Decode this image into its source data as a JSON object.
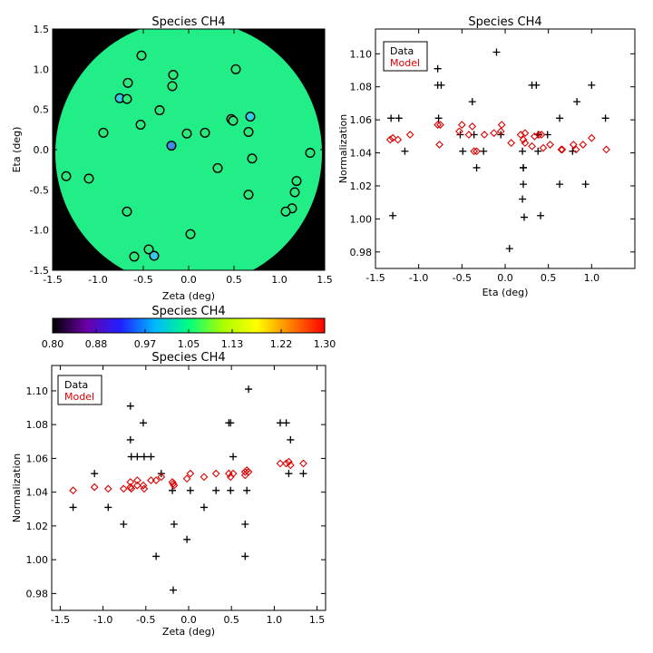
{
  "chart_data": [
    {
      "type": "scatter",
      "id": "map",
      "title": "Species CH4",
      "xlabel": "Zeta (deg)",
      "ylabel": "Eta (deg)",
      "xlim": [
        -1.5,
        1.5
      ],
      "ylim": [
        -1.5,
        1.5
      ],
      "xticks": [
        "-1.5",
        "-1.0",
        "-0.5",
        "0.0",
        "0.5",
        "1.0",
        "1.5"
      ],
      "yticks": [
        "-1.5",
        "-1.0",
        "-0.5",
        "0.0",
        "0.5",
        "1.0",
        "1.5"
      ],
      "background_color": "#000000",
      "field_color": "#22ee88",
      "points": [
        {
          "x": -0.52,
          "y": 1.17,
          "c": "#2de87c"
        },
        {
          "x": -0.17,
          "y": 0.93,
          "c": "#2de87c"
        },
        {
          "x": 0.52,
          "y": 1.0,
          "c": "#2de87c"
        },
        {
          "x": -0.67,
          "y": 0.83,
          "c": "#2de87c"
        },
        {
          "x": -0.18,
          "y": 0.79,
          "c": "#2de87c"
        },
        {
          "x": -0.76,
          "y": 0.64,
          "c": "#38c8e8"
        },
        {
          "x": -0.68,
          "y": 0.63,
          "c": "#2de87c"
        },
        {
          "x": -0.32,
          "y": 0.49,
          "c": "#2de87c"
        },
        {
          "x": 0.68,
          "y": 0.41,
          "c": "#38c8e8"
        },
        {
          "x": 0.47,
          "y": 0.38,
          "c": "#2de87c"
        },
        {
          "x": 0.49,
          "y": 0.36,
          "c": "#2de87c"
        },
        {
          "x": -0.53,
          "y": 0.31,
          "c": "#2de87c"
        },
        {
          "x": 0.66,
          "y": 0.22,
          "c": "#2de87c"
        },
        {
          "x": -0.94,
          "y": 0.21,
          "c": "#2de87c"
        },
        {
          "x": 0.18,
          "y": 0.21,
          "c": "#2de87c"
        },
        {
          "x": -0.02,
          "y": 0.2,
          "c": "#2de87c"
        },
        {
          "x": -0.19,
          "y": 0.05,
          "c": "#3a8ee8"
        },
        {
          "x": 1.34,
          "y": -0.04,
          "c": "#2de87c"
        },
        {
          "x": 0.7,
          "y": -0.11,
          "c": "#2de87c"
        },
        {
          "x": 0.32,
          "y": -0.23,
          "c": "#2de87c"
        },
        {
          "x": -1.35,
          "y": -0.33,
          "c": "#2de87c"
        },
        {
          "x": -1.1,
          "y": -0.36,
          "c": "#2de87c"
        },
        {
          "x": 1.19,
          "y": -0.39,
          "c": "#2de87c"
        },
        {
          "x": 1.17,
          "y": -0.53,
          "c": "#2de87c"
        },
        {
          "x": 0.66,
          "y": -0.56,
          "c": "#2de87c"
        },
        {
          "x": 1.14,
          "y": -0.73,
          "c": "#2de87c"
        },
        {
          "x": 1.07,
          "y": -0.77,
          "c": "#2de87c"
        },
        {
          "x": -0.68,
          "y": -0.77,
          "c": "#2de87c"
        },
        {
          "x": 0.02,
          "y": -1.05,
          "c": "#2de87c"
        },
        {
          "x": -0.44,
          "y": -1.24,
          "c": "#2de87c"
        },
        {
          "x": -0.6,
          "y": -1.33,
          "c": "#2de87c"
        },
        {
          "x": -0.38,
          "y": -1.32,
          "c": "#38c8e8"
        }
      ]
    },
    {
      "type": "scatter",
      "id": "eta",
      "title": "Species CH4",
      "xlabel": "Eta (deg)",
      "ylabel": "Normalization",
      "xlim": [
        -1.5,
        1.5
      ],
      "ylim": [
        0.97,
        1.115
      ],
      "xticks": [
        "-1.5",
        "-1.0",
        "-0.5",
        "0.0",
        "0.5",
        "1.0"
      ],
      "yticks": [
        "0.98",
        "1.00",
        "1.02",
        "1.04",
        "1.06",
        "1.08",
        "1.10"
      ],
      "legend": {
        "placement": "top-left",
        "entries": [
          {
            "label": "Data",
            "color": "#000000"
          },
          {
            "label": "Model",
            "color": "#dd0000"
          }
        ]
      },
      "series": [
        {
          "name": "Data",
          "marker": "plus",
          "color": "#000000",
          "points": [
            [
              -1.32,
              1.061
            ],
            [
              -1.23,
              1.061
            ],
            [
              -1.16,
              1.041
            ],
            [
              -1.3,
              1.002
            ],
            [
              -0.78,
              1.091
            ],
            [
              -0.78,
              1.081
            ],
            [
              -0.74,
              1.081
            ],
            [
              -0.77,
              1.061
            ],
            [
              -0.38,
              1.071
            ],
            [
              -0.52,
              1.051
            ],
            [
              -0.49,
              1.041
            ],
            [
              -0.36,
              1.051
            ],
            [
              -0.33,
              1.031
            ],
            [
              -0.25,
              1.041
            ],
            [
              -0.1,
              1.101
            ],
            [
              -0.05,
              1.051
            ],
            [
              0.05,
              0.982
            ],
            [
              0.2,
              1.041
            ],
            [
              0.21,
              1.031
            ],
            [
              0.21,
              1.021
            ],
            [
              0.2,
              1.012
            ],
            [
              0.21,
              1.031
            ],
            [
              0.22,
              1.001
            ],
            [
              0.31,
              1.081
            ],
            [
              0.36,
              1.081
            ],
            [
              0.38,
              1.051
            ],
            [
              0.38,
              1.041
            ],
            [
              0.41,
              1.002
            ],
            [
              0.49,
              1.051
            ],
            [
              0.63,
              1.061
            ],
            [
              0.63,
              1.021
            ],
            [
              0.78,
              1.041
            ],
            [
              0.83,
              1.071
            ],
            [
              0.93,
              1.021
            ],
            [
              1.0,
              1.081
            ],
            [
              1.16,
              1.061
            ]
          ]
        },
        {
          "name": "Model",
          "marker": "diamond",
          "color": "#dd0000",
          "points": [
            [
              -1.33,
              1.048
            ],
            [
              -1.3,
              1.049
            ],
            [
              -1.24,
              1.048
            ],
            [
              -1.1,
              1.051
            ],
            [
              -0.78,
              1.057
            ],
            [
              -0.75,
              1.057
            ],
            [
              -0.76,
              1.045
            ],
            [
              -0.53,
              1.053
            ],
            [
              -0.5,
              1.057
            ],
            [
              -0.42,
              1.051
            ],
            [
              -0.38,
              1.056
            ],
            [
              -0.36,
              1.041
            ],
            [
              -0.33,
              1.041
            ],
            [
              -0.24,
              1.051
            ],
            [
              -0.13,
              1.052
            ],
            [
              -0.05,
              1.053
            ],
            [
              -0.04,
              1.057
            ],
            [
              0.07,
              1.046
            ],
            [
              0.18,
              1.051
            ],
            [
              0.21,
              1.048
            ],
            [
              0.23,
              1.052
            ],
            [
              0.23,
              1.046
            ],
            [
              0.31,
              1.044
            ],
            [
              0.34,
              1.05
            ],
            [
              0.39,
              1.051
            ],
            [
              0.42,
              1.051
            ],
            [
              0.44,
              1.043
            ],
            [
              0.52,
              1.045
            ],
            [
              0.65,
              1.042
            ],
            [
              0.66,
              1.042
            ],
            [
              0.79,
              1.045
            ],
            [
              0.82,
              1.042
            ],
            [
              0.9,
              1.045
            ],
            [
              1.0,
              1.049
            ],
            [
              1.17,
              1.042
            ]
          ]
        }
      ]
    },
    {
      "type": "colorbar",
      "id": "cbar",
      "title": "Species CH4",
      "vmin": 0.8,
      "vmax": 1.3,
      "tick_labels": [
        "0.80",
        "0.88",
        "0.97",
        "1.05",
        "1.13",
        "1.22",
        "1.30"
      ],
      "colormap": [
        "#000000",
        "#6a00a8",
        "#2020ff",
        "#00b8ff",
        "#00ff80",
        "#a8ff00",
        "#ffff00",
        "#ff8000",
        "#ff0000"
      ]
    },
    {
      "type": "scatter",
      "id": "zeta",
      "title": "Species CH4",
      "xlabel": "Zeta (deg)",
      "ylabel": "Normalization",
      "xlim": [
        -1.6,
        1.6
      ],
      "ylim": [
        0.97,
        1.115
      ],
      "xticks": [
        "-1.5",
        "-1.0",
        "-0.5",
        "0.0",
        "0.5",
        "1.0",
        "1.5"
      ],
      "yticks": [
        "0.98",
        "1.00",
        "1.02",
        "1.04",
        "1.06",
        "1.08",
        "1.10"
      ],
      "legend": {
        "placement": "top-left",
        "entries": [
          {
            "label": "Data",
            "color": "#000000"
          },
          {
            "label": "Model",
            "color": "#dd0000"
          }
        ]
      },
      "series": [
        {
          "name": "Data",
          "marker": "plus",
          "color": "#000000",
          "points": [
            [
              -1.35,
              1.031
            ],
            [
              -1.1,
              1.051
            ],
            [
              -0.94,
              1.031
            ],
            [
              -0.76,
              1.021
            ],
            [
              -0.68,
              1.091
            ],
            [
              -0.68,
              1.071
            ],
            [
              -0.67,
              1.061
            ],
            [
              -0.6,
              1.061
            ],
            [
              -0.53,
              1.081
            ],
            [
              -0.52,
              1.061
            ],
            [
              -0.44,
              1.061
            ],
            [
              -0.38,
              1.002
            ],
            [
              -0.32,
              1.051
            ],
            [
              -0.19,
              1.041
            ],
            [
              -0.18,
              0.982
            ],
            [
              -0.17,
              1.021
            ],
            [
              -0.02,
              1.012
            ],
            [
              0.02,
              1.041
            ],
            [
              0.18,
              1.031
            ],
            [
              0.32,
              1.041
            ],
            [
              0.47,
              1.081
            ],
            [
              0.49,
              1.081
            ],
            [
              0.49,
              1.041
            ],
            [
              0.52,
              1.061
            ],
            [
              0.66,
              1.021
            ],
            [
              0.66,
              1.002
            ],
            [
              0.68,
              1.041
            ],
            [
              0.7,
              1.101
            ],
            [
              1.07,
              1.081
            ],
            [
              1.14,
              1.081
            ],
            [
              1.17,
              1.051
            ],
            [
              1.19,
              1.071
            ],
            [
              1.34,
              1.051
            ]
          ]
        },
        {
          "name": "Model",
          "marker": "diamond",
          "color": "#dd0000",
          "points": [
            [
              -1.35,
              1.041
            ],
            [
              -1.1,
              1.043
            ],
            [
              -0.94,
              1.042
            ],
            [
              -0.76,
              1.042
            ],
            [
              -0.68,
              1.046
            ],
            [
              -0.68,
              1.043
            ],
            [
              -0.67,
              1.042
            ],
            [
              -0.6,
              1.044
            ],
            [
              -0.6,
              1.047
            ],
            [
              -0.53,
              1.044
            ],
            [
              -0.52,
              1.042
            ],
            [
              -0.44,
              1.047
            ],
            [
              -0.38,
              1.047
            ],
            [
              -0.32,
              1.049
            ],
            [
              -0.19,
              1.046
            ],
            [
              -0.18,
              1.045
            ],
            [
              -0.17,
              1.044
            ],
            [
              -0.02,
              1.048
            ],
            [
              0.02,
              1.051
            ],
            [
              0.18,
              1.049
            ],
            [
              0.32,
              1.051
            ],
            [
              0.47,
              1.051
            ],
            [
              0.49,
              1.049
            ],
            [
              0.52,
              1.051
            ],
            [
              0.66,
              1.052
            ],
            [
              0.66,
              1.05
            ],
            [
              0.68,
              1.053
            ],
            [
              0.7,
              1.052
            ],
            [
              1.07,
              1.057
            ],
            [
              1.14,
              1.057
            ],
            [
              1.17,
              1.058
            ],
            [
              1.19,
              1.056
            ],
            [
              1.34,
              1.057
            ]
          ]
        }
      ]
    }
  ]
}
